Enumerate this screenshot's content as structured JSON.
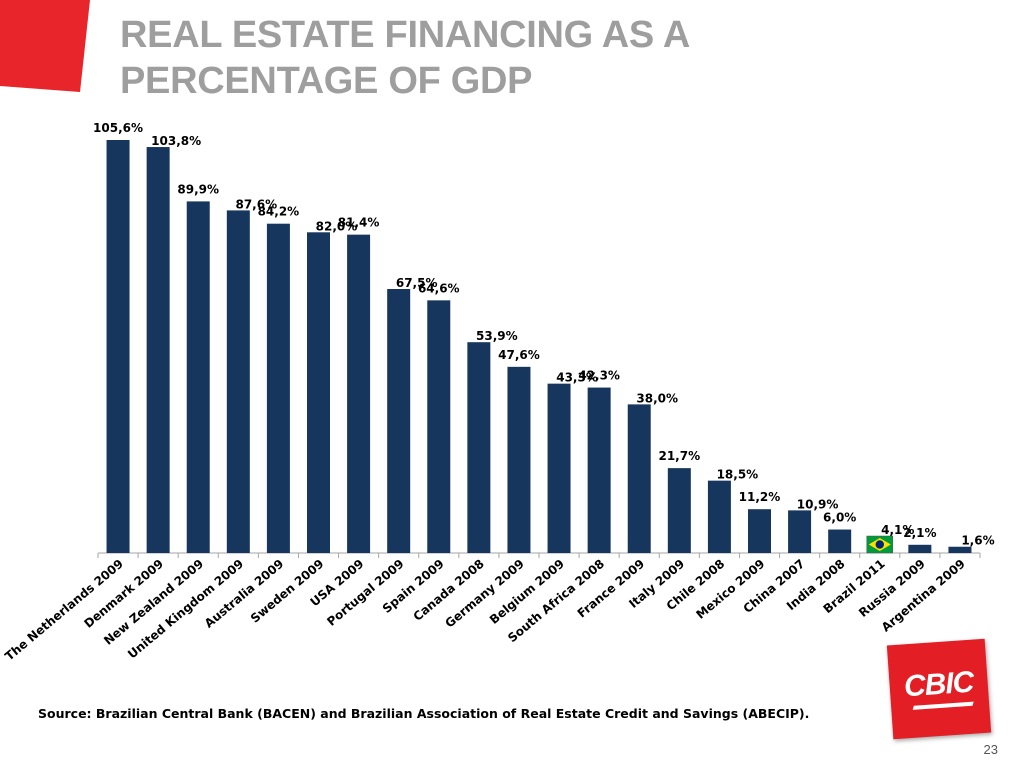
{
  "slide": {
    "title": "REAL ESTATE FINANCING AS A PERCENTAGE OF GDP",
    "source": "Source: Brazilian Central Bank (BACEN) and Brazilian Association of Real Estate Credit and Savings (ABECIP).",
    "page_number": "23",
    "logo_text": "CBIC",
    "accent_color": "#e31e24",
    "title_color": "#9e9e9e"
  },
  "chart_data": {
    "type": "bar",
    "title": "",
    "xlabel": "",
    "ylabel": "",
    "ylim": [
      0,
      110
    ],
    "grid": false,
    "bar_color": "#17365d",
    "categories": [
      "The Netherlands 2009",
      "Denmark 2009",
      "New Zealand 2009",
      "United Kingdom 2009",
      "Australia 2009",
      "Sweden 2009",
      "USA 2009",
      "Portugal 2009",
      "Spain 2009",
      "Canada 2008",
      "Germany 2009",
      "Belgium 2009",
      "South Africa 2008",
      "France 2009",
      "Italy 2009",
      "Chile 2008",
      "Mexico 2009",
      "China 2007",
      "India 2008",
      "Brazil 2011",
      "Russia 2009",
      "Argentina 2009"
    ],
    "values": [
      105.6,
      103.8,
      89.9,
      87.6,
      84.2,
      82.0,
      81.4,
      67.5,
      64.6,
      53.9,
      47.6,
      43.3,
      42.3,
      38.0,
      21.7,
      18.5,
      11.2,
      10.9,
      6.0,
      4.1,
      2.1,
      1.6
    ],
    "value_labels": [
      "105,6%",
      "103,8%",
      "89,9%",
      "87,6%",
      "84,2%",
      "82,0%",
      "81,4%",
      "67,5%",
      "64,6%",
      "53,9%",
      "47,6%",
      "43,3%",
      "42,3%",
      "38,0%",
      "21,7%",
      "18,5%",
      "11,2%",
      "10,9%",
      "6,0%",
      "4,1%",
      "2,1%",
      "1,6%"
    ],
    "highlight": {
      "category": "Brazil 2011",
      "icon": "brazil-flag-icon"
    }
  }
}
